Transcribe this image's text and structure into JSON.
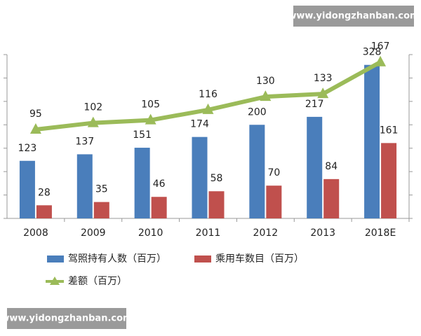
{
  "chart_data": {
    "type": "combo",
    "categories": [
      "2008",
      "2009",
      "2010",
      "2011",
      "2012",
      "2013",
      "2018E"
    ],
    "series": [
      {
        "name": "驾照持有人数（百万）",
        "type": "bar",
        "color": "#4a7ebb",
        "values": [
          123,
          137,
          151,
          174,
          200,
          217,
          328
        ]
      },
      {
        "name": "乘用车数目（百万）",
        "type": "bar",
        "color": "#c0504d",
        "values": [
          28,
          35,
          46,
          58,
          70,
          84,
          161
        ]
      },
      {
        "name": "差额（百万）",
        "type": "line",
        "axis": "y2",
        "color": "#9bbb59",
        "values": [
          95,
          102,
          105,
          116,
          130,
          133,
          167
        ]
      }
    ],
    "ylim": [
      0,
      350
    ],
    "yticks": [
      0,
      50,
      100,
      150,
      200,
      250,
      300,
      350
    ],
    "y2lim": [
      0,
      175
    ],
    "y2ticks": [
      0,
      25,
      50,
      75,
      100,
      125,
      150,
      175
    ],
    "grid": false,
    "watermarks": [
      "www.yidongzhanban.com",
      "www.yidongzhanban.com"
    ]
  }
}
